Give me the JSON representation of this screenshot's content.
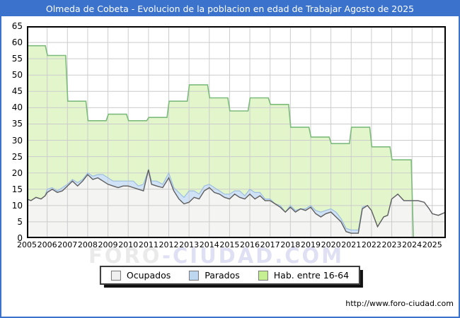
{
  "page": {
    "footer_url": "http://www.foro-ciudad.com",
    "watermark": {
      "part1": "FORO",
      "part2": "-CIUDAD.COM"
    }
  },
  "colors": {
    "frame_blue": "#3B72CC",
    "title_text": "#FFFFFF",
    "grid": "#CCCCCC",
    "plot_border": "#000000",
    "green_fill": "#E3F6CB",
    "green_line": "#7CBB7C",
    "ocupados_fill": "#F4F4F2",
    "ocupados_line": "#5E5E5E",
    "parados_fill": "#CFE2F6",
    "parados_line": "#9FBFE0"
  },
  "chart_data": {
    "type": "area",
    "title": "Olmeda de Cobeta - Evolucion de la poblacion en edad de Trabajar Agosto de 2025",
    "xlabel": "",
    "ylabel": "",
    "xlim": [
      2005,
      2025.67
    ],
    "ylim": [
      0,
      65
    ],
    "grid": true,
    "legend_position": "bottom",
    "x_ticks": [
      2005,
      2006,
      2007,
      2008,
      2009,
      2010,
      2011,
      2012,
      2013,
      2014,
      2015,
      2016,
      2017,
      2018,
      2019,
      2020,
      2021,
      2022,
      2023,
      2024,
      2025
    ],
    "y_ticks": [
      0,
      5,
      10,
      15,
      20,
      25,
      30,
      35,
      40,
      45,
      50,
      55,
      60,
      65
    ],
    "x_monthly": [
      2005.0,
      2005.2,
      2005.45,
      2005.7,
      2005.9,
      2006.0,
      2006.25,
      2006.5,
      2006.75,
      2007.0,
      2007.25,
      2007.5,
      2007.75,
      2008.0,
      2008.25,
      2008.5,
      2008.75,
      2009.0,
      2009.25,
      2009.5,
      2009.75,
      2010.0,
      2010.25,
      2010.5,
      2010.75,
      2011.0,
      2011.15,
      2011.4,
      2011.7,
      2012.0,
      2012.25,
      2012.5,
      2012.75,
      2013.0,
      2013.25,
      2013.5,
      2013.75,
      2014.0,
      2014.25,
      2014.5,
      2014.75,
      2015.0,
      2015.25,
      2015.5,
      2015.75,
      2016.0,
      2016.25,
      2016.5,
      2016.75,
      2017.0,
      2017.25,
      2017.5,
      2017.75,
      2018.0,
      2018.25,
      2018.5,
      2018.75,
      2019.0,
      2019.25,
      2019.5,
      2019.75,
      2020.0,
      2020.25,
      2020.5,
      2020.75,
      2021.0,
      2021.35,
      2021.55,
      2021.8,
      2022.0,
      2022.3,
      2022.6,
      2022.8,
      2023.0,
      2023.3,
      2023.6,
      2023.85,
      2024.0,
      2024.3,
      2024.6,
      2024.85,
      2025.0,
      2025.3,
      2025.67
    ],
    "series": [
      {
        "name": "Ocupados",
        "type": "area-line",
        "values": [
          12,
          11.5,
          12.5,
          12,
          13,
          14,
          15,
          14,
          14.5,
          16,
          17.5,
          16,
          17.5,
          19.5,
          18,
          18.5,
          17.5,
          16.5,
          16,
          15.5,
          16,
          16,
          15.5,
          15,
          14.5,
          21,
          16.5,
          16,
          15.5,
          18.5,
          14.5,
          12,
          10.5,
          11,
          12.5,
          12,
          14.5,
          15.5,
          14,
          13.5,
          12.5,
          12,
          13.5,
          12.5,
          12,
          13.5,
          12,
          13,
          11.5,
          11.5,
          10.5,
          9.5,
          8,
          9.5,
          8,
          9,
          8.5,
          9.5,
          7.5,
          6.5,
          7.5,
          8,
          6.5,
          5,
          2,
          1.5,
          1.5,
          9,
          10,
          8.5,
          3.5,
          6.5,
          7,
          12,
          13.5,
          11.5,
          11.5,
          11.5,
          11.5,
          11,
          9,
          7.5,
          7,
          8
        ]
      },
      {
        "name": "Parados",
        "type": "area-band-stacked-on-ocupados",
        "values": [
          0,
          0,
          0,
          0,
          0,
          1,
          0.5,
          0.5,
          1,
          0.5,
          0.5,
          1,
          0.5,
          0.5,
          1,
          1,
          2,
          2,
          1.5,
          2,
          1.5,
          1.5,
          2,
          1,
          2,
          0,
          1,
          1.5,
          1,
          1.5,
          1,
          2,
          2,
          3.5,
          2,
          1.5,
          1.5,
          1,
          1.5,
          1,
          1,
          1.5,
          1,
          2,
          1,
          1.5,
          2,
          1,
          0.5,
          0.5,
          0,
          0.5,
          0,
          0.5,
          0.5,
          0,
          0.5,
          0.5,
          1,
          1.5,
          1,
          1,
          1.5,
          1,
          1,
          1,
          1,
          0.5,
          0,
          0,
          0,
          0,
          0,
          0,
          0,
          0,
          0,
          0,
          0,
          0,
          0,
          0,
          0,
          0
        ]
      },
      {
        "name": "Hab. entre 16-64",
        "type": "step-area-annual",
        "points": [
          [
            2005,
            59
          ],
          [
            2006,
            56
          ],
          [
            2007,
            42
          ],
          [
            2008,
            36
          ],
          [
            2009,
            38
          ],
          [
            2010,
            36
          ],
          [
            2011,
            37
          ],
          [
            2012,
            42
          ],
          [
            2013,
            47
          ],
          [
            2014,
            43
          ],
          [
            2015,
            39
          ],
          [
            2016,
            43
          ],
          [
            2017,
            41
          ],
          [
            2018,
            34
          ],
          [
            2019,
            31
          ],
          [
            2020,
            29
          ],
          [
            2021,
            34
          ],
          [
            2022,
            28
          ],
          [
            2023,
            24
          ],
          [
            2024.05,
            0
          ]
        ]
      }
    ],
    "legend": [
      {
        "label": "Ocupados",
        "swatch": "#F0F0F0",
        "swatch_border": "#777777"
      },
      {
        "label": "Parados",
        "swatch": "#BDD7F0",
        "swatch_border": "#777777"
      },
      {
        "label": "Hab. entre 16-64",
        "swatch": "#C6EE92",
        "swatch_border": "#777777"
      }
    ]
  }
}
